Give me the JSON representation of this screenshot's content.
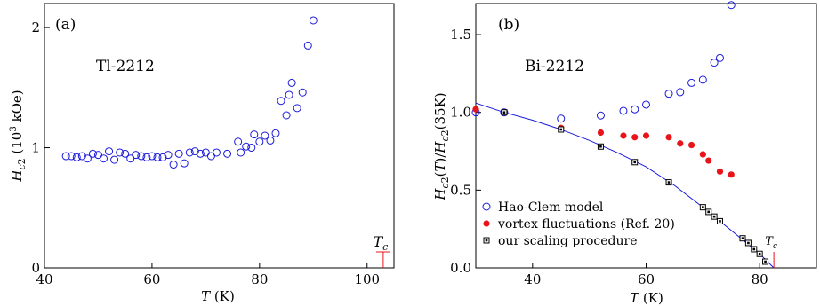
{
  "chart_data": [
    {
      "type": "scatter",
      "panel_label": "(a)",
      "annotation": "Tl-2212",
      "xlabel": "T (K)",
      "ylabel": "H_c2 (10^3 kOe)",
      "xlim": [
        40,
        105
      ],
      "ylim": [
        0,
        2.2
      ],
      "xticks": [
        40,
        60,
        80,
        100
      ],
      "yticks": [
        0,
        1,
        2
      ],
      "tc_marker": {
        "label": "T_c",
        "x": 103
      },
      "series": [
        {
          "marker": "open-circle",
          "color": "#1a1adb",
          "points": [
            [
              44,
              0.93
            ],
            [
              45,
              0.93
            ],
            [
              46,
              0.92
            ],
            [
              47,
              0.93
            ],
            [
              48,
              0.91
            ],
            [
              49,
              0.95
            ],
            [
              50,
              0.94
            ],
            [
              51,
              0.91
            ],
            [
              52,
              0.97
            ],
            [
              53,
              0.9
            ],
            [
              54,
              0.96
            ],
            [
              55,
              0.95
            ],
            [
              56,
              0.91
            ],
            [
              57,
              0.94
            ],
            [
              58,
              0.93
            ],
            [
              59,
              0.92
            ],
            [
              60,
              0.93
            ],
            [
              61,
              0.92
            ],
            [
              62,
              0.92
            ],
            [
              63,
              0.94
            ],
            [
              64,
              0.86
            ],
            [
              65,
              0.95
            ],
            [
              66,
              0.87
            ],
            [
              67,
              0.96
            ],
            [
              68,
              0.97
            ],
            [
              69,
              0.95
            ],
            [
              70,
              0.96
            ],
            [
              71,
              0.93
            ],
            [
              72,
              0.96
            ],
            [
              74,
              0.95
            ],
            [
              76,
              1.05
            ],
            [
              76.5,
              0.96
            ],
            [
              77.5,
              1.01
            ],
            [
              78.5,
              1.0
            ],
            [
              79,
              1.11
            ],
            [
              80,
              1.05
            ],
            [
              81,
              1.1
            ],
            [
              82,
              1.06
            ],
            [
              83,
              1.12
            ],
            [
              84,
              1.39
            ],
            [
              85,
              1.27
            ],
            [
              85.5,
              1.44
            ],
            [
              86,
              1.54
            ],
            [
              87,
              1.33
            ],
            [
              88,
              1.46
            ],
            [
              89,
              1.85
            ],
            [
              90,
              2.06
            ]
          ]
        }
      ]
    },
    {
      "type": "scatter",
      "panel_label": "(b)",
      "annotation": "Bi-2212",
      "xlabel": "T (K)",
      "ylabel": "H_c2(T)/H_c2(35K)",
      "xlim": [
        30,
        90
      ],
      "ylim": [
        0,
        1.7
      ],
      "xticks": [
        40,
        60,
        80
      ],
      "yticks": [
        0.0,
        0.5,
        1.0,
        1.5
      ],
      "ytick_labels": [
        "0.0",
        "0.5",
        "1.0",
        "1.5"
      ],
      "tc_marker": {
        "label": "T_c",
        "x": 82.5
      },
      "legend_position": "bottom-left",
      "series": [
        {
          "name": "Hao-Clem model",
          "marker": "open-circle",
          "color": "#1a1adb",
          "points": [
            [
              30,
              1.0
            ],
            [
              35,
              1.0
            ],
            [
              45,
              0.96
            ],
            [
              52,
              0.98
            ],
            [
              56,
              1.01
            ],
            [
              58,
              1.02
            ],
            [
              60,
              1.05
            ],
            [
              64,
              1.12
            ],
            [
              66,
              1.13
            ],
            [
              68,
              1.19
            ],
            [
              70,
              1.21
            ],
            [
              72,
              1.32
            ],
            [
              73,
              1.35
            ],
            [
              75,
              1.69
            ]
          ]
        },
        {
          "name": "vortex fluctuations (Ref. 20)",
          "marker": "filled-circle",
          "color": "#e8141a",
          "points": [
            [
              30,
              1.02
            ],
            [
              35,
              1.0
            ],
            [
              45,
              0.9
            ],
            [
              52,
              0.87
            ],
            [
              56,
              0.85
            ],
            [
              58,
              0.84
            ],
            [
              60,
              0.85
            ],
            [
              64,
              0.84
            ],
            [
              66,
              0.8
            ],
            [
              68,
              0.79
            ],
            [
              70,
              0.73
            ],
            [
              71,
              0.69
            ],
            [
              73,
              0.62
            ],
            [
              75,
              0.6
            ]
          ]
        },
        {
          "name": "our scaling procedure",
          "marker": "boxed-dot-square",
          "color": "#000000",
          "points": [
            [
              35,
              1.0
            ],
            [
              45,
              0.89
            ],
            [
              52,
              0.78
            ],
            [
              58,
              0.68
            ],
            [
              64,
              0.55
            ],
            [
              70,
              0.39
            ],
            [
              71,
              0.36
            ],
            [
              72,
              0.33
            ],
            [
              73,
              0.3
            ],
            [
              77,
              0.19
            ],
            [
              78,
              0.16
            ],
            [
              79,
              0.12
            ],
            [
              80,
              0.09
            ],
            [
              81,
              0.04
            ]
          ]
        }
      ],
      "fit_curve": {
        "color": "#1a1adb",
        "x": [
          30,
          35,
          40,
          45,
          50,
          55,
          60,
          65,
          70,
          75,
          80,
          82.5
        ],
        "y": [
          1.06,
          1.0,
          0.95,
          0.89,
          0.82,
          0.74,
          0.65,
          0.53,
          0.39,
          0.24,
          0.09,
          0.0
        ]
      }
    }
  ]
}
